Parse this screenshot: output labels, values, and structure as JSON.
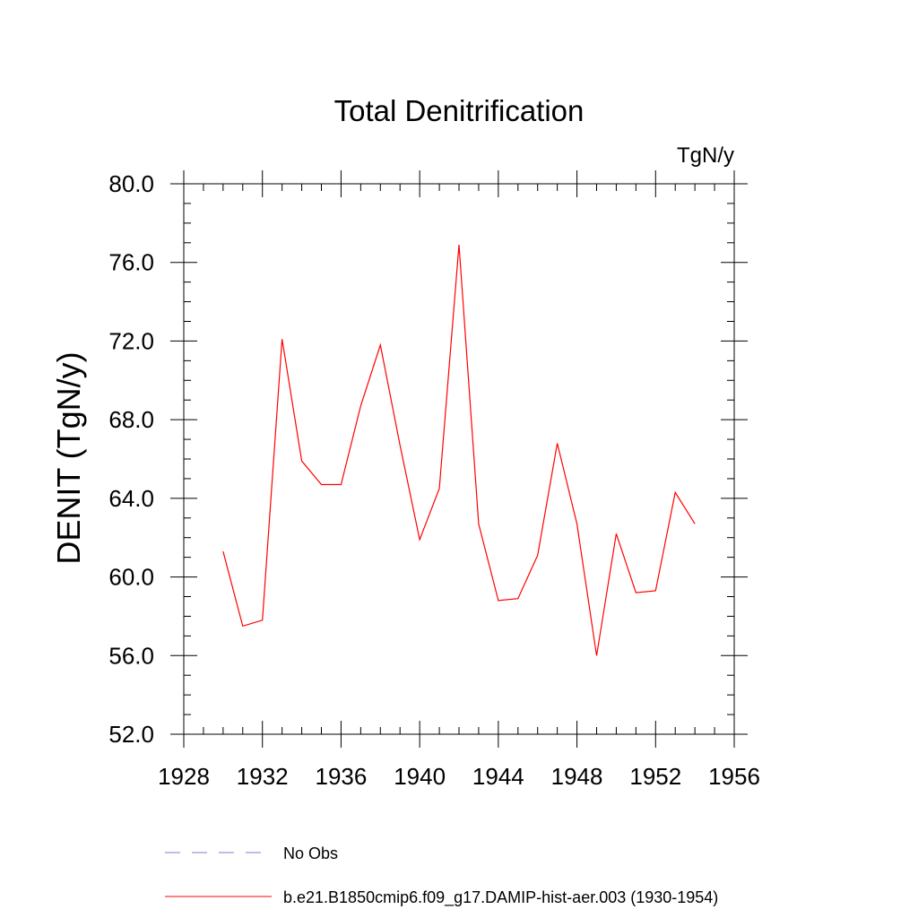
{
  "chart_data": {
    "type": "line",
    "title": "Total Denitrification",
    "units": "TgN/y",
    "xlabel": "",
    "ylabel": "DENIT  (TgN/y)",
    "xlim": [
      1928,
      1956
    ],
    "ylim": [
      52,
      80
    ],
    "x_ticks": [
      1928,
      1932,
      1936,
      1940,
      1944,
      1948,
      1952,
      1956
    ],
    "x_tick_labels": [
      "1928",
      "1932",
      "1936",
      "1940",
      "1944",
      "1948",
      "1952",
      "1956"
    ],
    "x_minor_step": 1,
    "y_ticks": [
      52,
      56,
      60,
      64,
      68,
      72,
      76,
      80
    ],
    "y_tick_labels": [
      "52.0",
      "56.0",
      "60.0",
      "64.0",
      "68.0",
      "72.0",
      "76.0",
      "80.0"
    ],
    "y_minor_step": 1,
    "grid": false,
    "legend_position": "bottom",
    "x": [
      1930,
      1931,
      1932,
      1933,
      1934,
      1935,
      1936,
      1937,
      1938,
      1939,
      1940,
      1941,
      1942,
      1943,
      1944,
      1945,
      1946,
      1947,
      1948,
      1949,
      1950,
      1951,
      1952,
      1953,
      1954
    ],
    "series": [
      {
        "name": "b.e21.B1850cmip6.f09_g17.DAMIP-hist-aer.003 (1930-1954)",
        "color": "#ff0000",
        "style": "solid",
        "values": [
          61.3,
          57.5,
          57.8,
          72.1,
          65.9,
          64.7,
          64.7,
          68.7,
          71.8,
          66.7,
          61.9,
          64.5,
          76.9,
          62.7,
          58.8,
          58.9,
          61.1,
          66.8,
          62.7,
          56.0,
          62.2,
          59.2,
          59.3,
          64.3,
          62.7
        ]
      }
    ],
    "legend": [
      {
        "name": "No Obs",
        "color": "#7b7bd0",
        "style": "dashed"
      },
      {
        "name": "b.e21.B1850cmip6.f09_g17.DAMIP-hist-aer.003 (1930-1954)",
        "color": "#ff0000",
        "style": "solid"
      }
    ]
  }
}
